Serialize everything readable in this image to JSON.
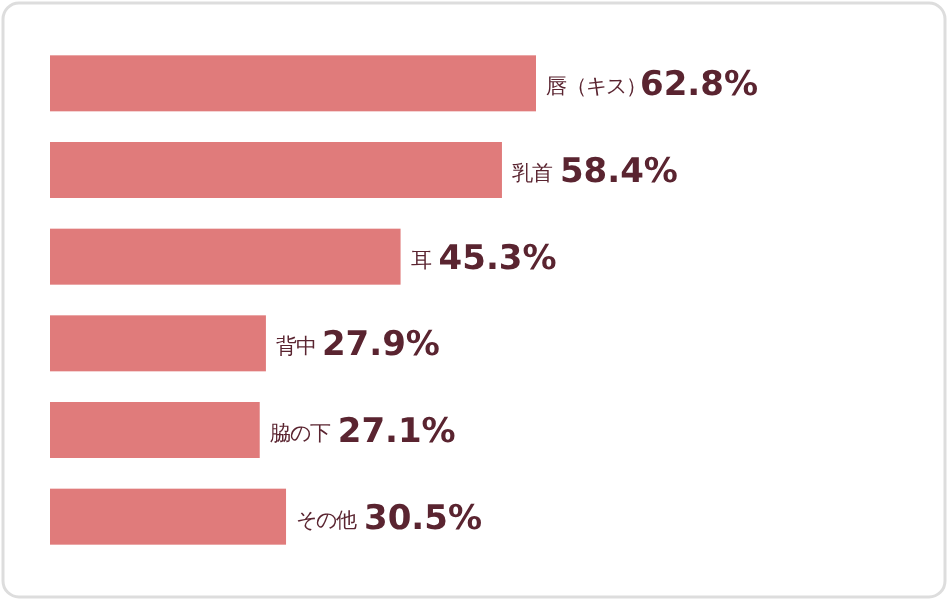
{
  "chart_data": {
    "type": "bar",
    "orientation": "horizontal",
    "categories": [
      "唇（キス）",
      "乳首",
      "耳",
      "背中",
      "脇の下",
      "その他"
    ],
    "values": [
      62.8,
      58.4,
      45.3,
      27.9,
      27.1,
      30.5
    ],
    "value_labels": [
      "62.8%",
      "58.4%",
      "45.3%",
      "27.9%",
      "27.1%",
      "30.5%"
    ],
    "color": "#e07b7b"
  }
}
